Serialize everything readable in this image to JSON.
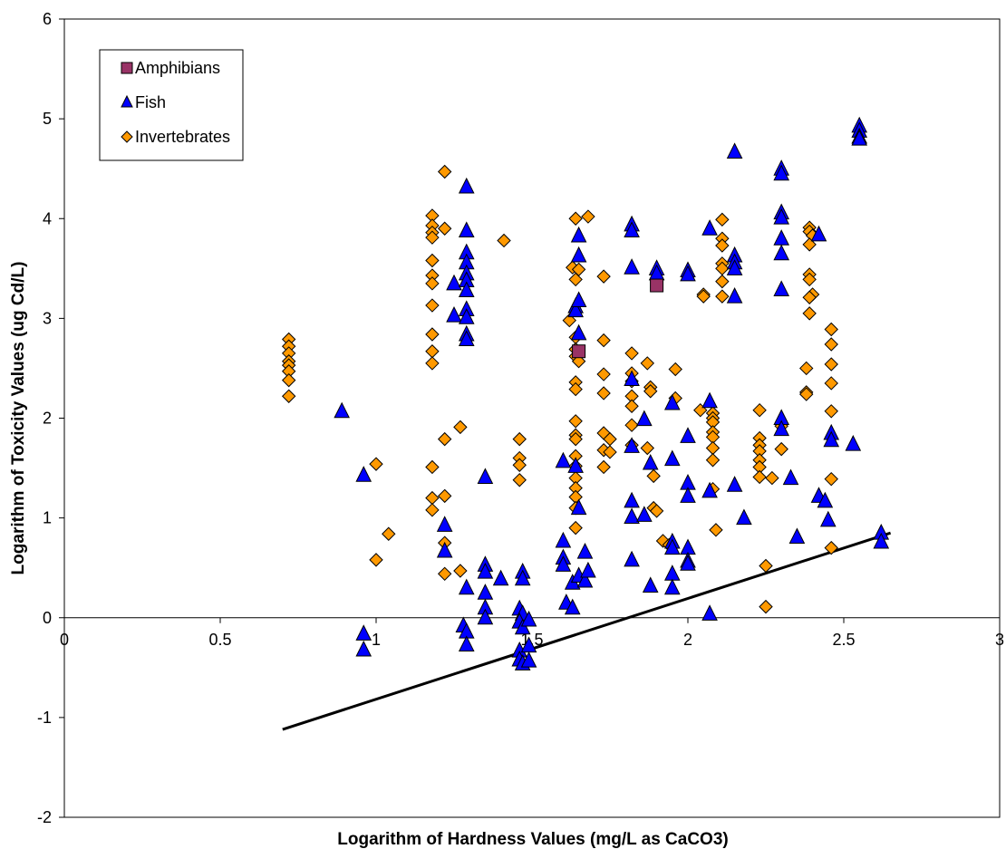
{
  "chart_data": {
    "type": "scatter",
    "title": "",
    "xlabel": "Logarithm of Hardness Values (mg/L as CaCO3)",
    "ylabel": "Logarithm of Toxicity Values (ug Cd/L)",
    "xlim": [
      0,
      3
    ],
    "ylim": [
      -2,
      6
    ],
    "x_ticks": [
      "0",
      "0.5",
      "1",
      "1.5",
      "2",
      "2.5",
      "3"
    ],
    "y_ticks": [
      "-2",
      "-1",
      "0",
      "1",
      "2",
      "3",
      "4",
      "5",
      "6"
    ],
    "grid": false,
    "legend_position": "top-left",
    "series": [
      {
        "name": "Amphibians",
        "marker": "square",
        "color": "#993366",
        "points": [
          [
            1.9,
            3.33
          ],
          [
            1.65,
            2.67
          ]
        ]
      },
      {
        "name": "Fish",
        "marker": "triangle",
        "color": "#0000ff",
        "points": [
          [
            0.89,
            2.07
          ],
          [
            0.96,
            1.43
          ],
          [
            0.96,
            -0.16
          ],
          [
            0.96,
            -0.32
          ],
          [
            1.22,
            0.93
          ],
          [
            1.22,
            0.67
          ],
          [
            1.25,
            3.35
          ],
          [
            1.25,
            3.03
          ],
          [
            1.29,
            4.32
          ],
          [
            1.29,
            3.88
          ],
          [
            1.29,
            3.66
          ],
          [
            1.29,
            3.56
          ],
          [
            1.29,
            3.45
          ],
          [
            1.29,
            3.38
          ],
          [
            1.29,
            3.28
          ],
          [
            1.29,
            3.09
          ],
          [
            1.29,
            3.01
          ],
          [
            1.29,
            2.84
          ],
          [
            1.29,
            2.79
          ],
          [
            1.29,
            0.3
          ],
          [
            1.28,
            -0.08
          ],
          [
            1.29,
            -0.14
          ],
          [
            1.29,
            -0.27
          ],
          [
            1.35,
            1.41
          ],
          [
            1.35,
            0.53
          ],
          [
            1.35,
            0.46
          ],
          [
            1.35,
            0.25
          ],
          [
            1.35,
            0.1
          ],
          [
            1.35,
            0.0
          ],
          [
            1.4,
            0.39
          ],
          [
            1.47,
            0.46
          ],
          [
            1.47,
            0.39
          ],
          [
            1.46,
            0.09
          ],
          [
            1.47,
            0.04
          ],
          [
            1.46,
            -0.04
          ],
          [
            1.47,
            -0.1
          ],
          [
            1.46,
            -0.33
          ],
          [
            1.46,
            -0.42
          ],
          [
            1.47,
            -0.46
          ],
          [
            1.49,
            -0.02
          ],
          [
            1.49,
            -0.28
          ],
          [
            1.49,
            -0.43
          ],
          [
            1.6,
            1.57
          ],
          [
            1.6,
            0.77
          ],
          [
            1.6,
            0.6
          ],
          [
            1.6,
            0.53
          ],
          [
            1.61,
            0.15
          ],
          [
            1.63,
            0.1
          ],
          [
            1.63,
            0.35
          ],
          [
            1.64,
            3.12
          ],
          [
            1.64,
            3.08
          ],
          [
            1.65,
            3.83
          ],
          [
            1.65,
            3.63
          ],
          [
            1.65,
            2.85
          ],
          [
            1.65,
            3.18
          ],
          [
            1.65,
            1.1
          ],
          [
            1.64,
            1.52
          ],
          [
            1.65,
            0.42
          ],
          [
            1.67,
            0.66
          ],
          [
            1.67,
            0.37
          ],
          [
            1.68,
            0.47
          ],
          [
            1.82,
            3.94
          ],
          [
            1.82,
            3.88
          ],
          [
            1.82,
            3.51
          ],
          [
            1.82,
            2.39
          ],
          [
            1.82,
            1.72
          ],
          [
            1.82,
            1.17
          ],
          [
            1.82,
            1.01
          ],
          [
            1.82,
            0.58
          ],
          [
            1.86,
            1.99
          ],
          [
            1.86,
            1.03
          ],
          [
            1.88,
            1.55
          ],
          [
            1.88,
            0.32
          ],
          [
            1.9,
            3.5
          ],
          [
            1.9,
            3.45
          ],
          [
            1.95,
            2.15
          ],
          [
            1.95,
            1.59
          ],
          [
            1.95,
            0.76
          ],
          [
            1.95,
            0.7
          ],
          [
            1.95,
            0.44
          ],
          [
            1.95,
            0.3
          ],
          [
            2.0,
            3.48
          ],
          [
            2.0,
            3.44
          ],
          [
            2.0,
            1.82
          ],
          [
            2.0,
            1.35
          ],
          [
            2.0,
            1.22
          ],
          [
            2.0,
            0.7
          ],
          [
            2.0,
            0.57
          ],
          [
            2.0,
            0.54
          ],
          [
            2.07,
            3.9
          ],
          [
            2.07,
            2.17
          ],
          [
            2.07,
            1.27
          ],
          [
            2.07,
            0.04
          ],
          [
            2.15,
            4.67
          ],
          [
            2.15,
            3.63
          ],
          [
            2.15,
            3.56
          ],
          [
            2.15,
            3.5
          ],
          [
            2.15,
            3.22
          ],
          [
            2.15,
            1.33
          ],
          [
            2.18,
            1.0
          ],
          [
            2.3,
            4.5
          ],
          [
            2.3,
            4.45
          ],
          [
            2.3,
            4.06
          ],
          [
            2.3,
            4.01
          ],
          [
            2.3,
            3.8
          ],
          [
            2.3,
            3.65
          ],
          [
            2.3,
            3.29
          ],
          [
            2.3,
            2.0
          ],
          [
            2.3,
            1.89
          ],
          [
            2.33,
            1.4
          ],
          [
            2.35,
            0.81
          ],
          [
            2.42,
            3.84
          ],
          [
            2.42,
            1.22
          ],
          [
            2.44,
            1.17
          ],
          [
            2.45,
            0.98
          ],
          [
            2.46,
            1.85
          ],
          [
            2.46,
            1.78
          ],
          [
            2.53,
            1.74
          ],
          [
            2.55,
            4.93
          ],
          [
            2.55,
            4.88
          ],
          [
            2.55,
            4.82
          ],
          [
            2.55,
            4.8
          ],
          [
            2.62,
            0.85
          ],
          [
            2.62,
            0.76
          ]
        ]
      },
      {
        "name": "Invertebrates",
        "marker": "diamond",
        "color": "#ff9900",
        "points": [
          [
            0.72,
            2.79
          ],
          [
            0.72,
            2.72
          ],
          [
            0.72,
            2.65
          ],
          [
            0.72,
            2.57
          ],
          [
            0.72,
            2.53
          ],
          [
            0.72,
            2.47
          ],
          [
            0.72,
            2.38
          ],
          [
            0.72,
            2.22
          ],
          [
            1.0,
            1.54
          ],
          [
            1.0,
            0.58
          ],
          [
            1.04,
            0.84
          ],
          [
            1.18,
            4.03
          ],
          [
            1.18,
            3.93
          ],
          [
            1.18,
            3.86
          ],
          [
            1.18,
            3.81
          ],
          [
            1.18,
            3.58
          ],
          [
            1.18,
            3.43
          ],
          [
            1.18,
            3.35
          ],
          [
            1.18,
            3.13
          ],
          [
            1.18,
            2.84
          ],
          [
            1.18,
            2.67
          ],
          [
            1.18,
            2.55
          ],
          [
            1.18,
            1.51
          ],
          [
            1.18,
            1.2
          ],
          [
            1.18,
            1.08
          ],
          [
            1.22,
            4.47
          ],
          [
            1.22,
            3.9
          ],
          [
            1.22,
            1.79
          ],
          [
            1.22,
            1.22
          ],
          [
            1.22,
            0.75
          ],
          [
            1.22,
            0.44
          ],
          [
            1.27,
            1.91
          ],
          [
            1.27,
            0.47
          ],
          [
            1.41,
            3.78
          ],
          [
            1.46,
            1.79
          ],
          [
            1.46,
            1.6
          ],
          [
            1.46,
            1.53
          ],
          [
            1.46,
            1.38
          ],
          [
            1.63,
            3.51
          ],
          [
            1.62,
            2.98
          ],
          [
            1.64,
            4.0
          ],
          [
            1.64,
            3.39
          ],
          [
            1.65,
            3.49
          ],
          [
            1.64,
            2.81
          ],
          [
            1.64,
            2.69
          ],
          [
            1.64,
            2.62
          ],
          [
            1.65,
            2.57
          ],
          [
            1.64,
            2.36
          ],
          [
            1.64,
            2.29
          ],
          [
            1.64,
            1.97
          ],
          [
            1.64,
            1.83
          ],
          [
            1.64,
            1.79
          ],
          [
            1.64,
            1.62
          ],
          [
            1.64,
            1.52
          ],
          [
            1.64,
            1.4
          ],
          [
            1.64,
            1.3
          ],
          [
            1.64,
            1.21
          ],
          [
            1.64,
            1.1
          ],
          [
            1.64,
            0.9
          ],
          [
            1.68,
            4.02
          ],
          [
            1.73,
            3.42
          ],
          [
            1.73,
            2.78
          ],
          [
            1.73,
            2.44
          ],
          [
            1.73,
            2.25
          ],
          [
            1.73,
            1.85
          ],
          [
            1.73,
            1.68
          ],
          [
            1.73,
            1.51
          ],
          [
            1.75,
            1.79
          ],
          [
            1.75,
            1.66
          ],
          [
            1.82,
            2.65
          ],
          [
            1.82,
            2.45
          ],
          [
            1.82,
            2.37
          ],
          [
            1.82,
            2.22
          ],
          [
            1.82,
            2.12
          ],
          [
            1.82,
            1.93
          ],
          [
            1.82,
            1.73
          ],
          [
            1.87,
            2.55
          ],
          [
            1.87,
            1.7
          ],
          [
            1.88,
            2.31
          ],
          [
            1.88,
            2.27
          ],
          [
            1.89,
            1.42
          ],
          [
            1.89,
            1.1
          ],
          [
            1.9,
            1.07
          ],
          [
            1.92,
            0.77
          ],
          [
            1.94,
            0.73
          ],
          [
            1.96,
            2.49
          ],
          [
            1.96,
            2.2
          ],
          [
            2.05,
            3.24
          ],
          [
            2.05,
            3.22
          ],
          [
            2.04,
            2.08
          ],
          [
            2.08,
            2.05
          ],
          [
            2.08,
            2.0
          ],
          [
            2.08,
            1.96
          ],
          [
            2.08,
            1.86
          ],
          [
            2.08,
            1.81
          ],
          [
            2.08,
            1.7
          ],
          [
            2.08,
            1.58
          ],
          [
            2.08,
            1.29
          ],
          [
            2.09,
            0.88
          ],
          [
            2.11,
            3.99
          ],
          [
            2.11,
            3.8
          ],
          [
            2.11,
            3.73
          ],
          [
            2.11,
            3.55
          ],
          [
            2.11,
            3.5
          ],
          [
            2.11,
            3.37
          ],
          [
            2.11,
            3.22
          ],
          [
            2.23,
            2.08
          ],
          [
            2.23,
            1.8
          ],
          [
            2.23,
            1.73
          ],
          [
            2.23,
            1.67
          ],
          [
            2.23,
            1.58
          ],
          [
            2.23,
            1.51
          ],
          [
            2.23,
            1.41
          ],
          [
            2.25,
            0.52
          ],
          [
            2.25,
            0.11
          ],
          [
            2.27,
            1.4
          ],
          [
            2.3,
            1.92
          ],
          [
            2.3,
            1.69
          ],
          [
            2.39,
            3.91
          ],
          [
            2.39,
            3.87
          ],
          [
            2.4,
            3.83
          ],
          [
            2.39,
            3.74
          ],
          [
            2.39,
            3.44
          ],
          [
            2.39,
            3.39
          ],
          [
            2.4,
            3.24
          ],
          [
            2.39,
            3.21
          ],
          [
            2.39,
            3.05
          ],
          [
            2.38,
            2.5
          ],
          [
            2.38,
            2.26
          ],
          [
            2.38,
            2.24
          ],
          [
            2.46,
            2.89
          ],
          [
            2.46,
            2.74
          ],
          [
            2.46,
            2.54
          ],
          [
            2.46,
            2.35
          ],
          [
            2.46,
            2.07
          ],
          [
            2.46,
            1.39
          ],
          [
            2.46,
            0.7
          ]
        ]
      }
    ],
    "regression_line": [
      [
        0.7,
        -1.12
      ],
      [
        2.65,
        0.85
      ]
    ]
  }
}
